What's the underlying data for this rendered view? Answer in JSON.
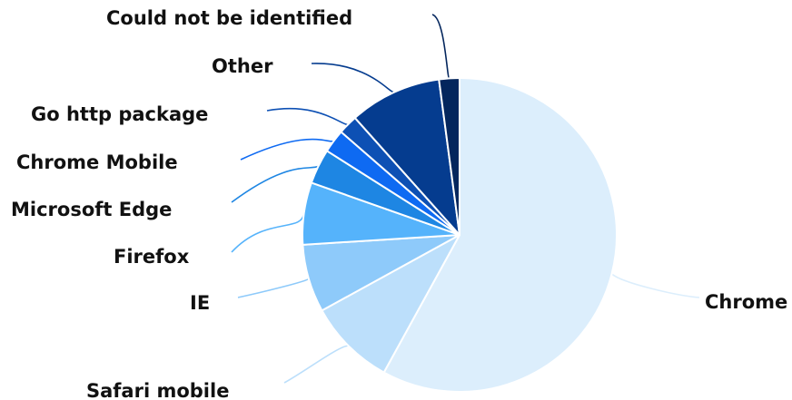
{
  "chart_data": {
    "type": "pie",
    "title": "",
    "legend": "none",
    "slices": [
      {
        "label": "Chrome",
        "value": 58.0,
        "color": "#dceefc"
      },
      {
        "label": "Safari mobile",
        "value": 9.0,
        "color": "#bcdffb"
      },
      {
        "label": "IE",
        "value": 7.0,
        "color": "#8ecafa"
      },
      {
        "label": "Firefox",
        "value": 6.4,
        "color": "#55b3fb"
      },
      {
        "label": "Microsoft Edge",
        "value": 3.6,
        "color": "#1e86e3"
      },
      {
        "label": "Chrome Mobile",
        "value": 2.4,
        "color": "#0e6af2"
      },
      {
        "label": "Go http package",
        "value": 2.0,
        "color": "#0d50b4"
      },
      {
        "label": "Other",
        "value": 9.5,
        "color": "#053c8f"
      },
      {
        "label": "Could not be identified",
        "value": 2.1,
        "color": "#04265d"
      }
    ]
  }
}
